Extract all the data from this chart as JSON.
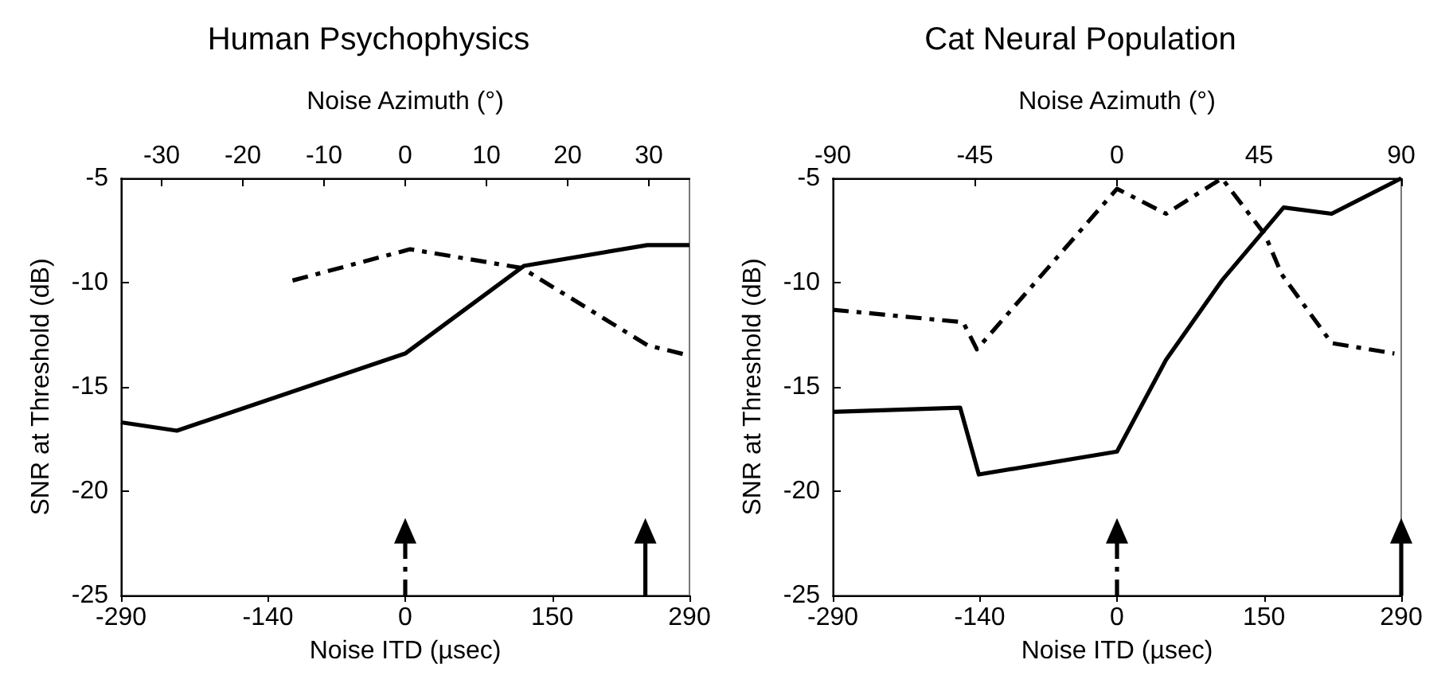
{
  "chart_data": [
    {
      "type": "line",
      "title": "Human Psychophysics",
      "xlabel": "Noise ITD (µsec)",
      "x2label": "Noise Azimuth (°)",
      "ylabel": "SNR at Threshold (dB)",
      "xlim": [
        -290,
        290
      ],
      "xticks": [
        -290,
        -140,
        0,
        150,
        290
      ],
      "x2lim": [
        -35,
        35
      ],
      "x2ticks": [
        -30,
        -20,
        -10,
        0,
        10,
        20,
        30
      ],
      "ylim": [
        -25,
        -5
      ],
      "yticks": [
        -25,
        -20,
        -15,
        -10,
        -5
      ],
      "grid": false,
      "series": [
        {
          "color": "#000000",
          "line_style": "solid",
          "x": [
            -290,
            -233,
            0,
            121,
            247,
            290
          ],
          "values": [
            -16.7,
            -17.1,
            -13.4,
            -9.2,
            -8.2,
            -8.2
          ]
        },
        {
          "color": "#000000",
          "line_style": "dashed",
          "x": [
            -115,
            5,
            119,
            247,
            290
          ],
          "values": [
            -9.9,
            -8.4,
            -9.3,
            -13.0,
            -13.5
          ]
        },
        {
          "color": "#000000",
          "line_style": "dashed",
          "marker": "triangle",
          "x": [
            0,
            0
          ],
          "values": [
            -25,
            -21.9
          ]
        },
        {
          "color": "#000000",
          "line_style": "solid",
          "marker": "triangle",
          "x": [
            245,
            245
          ],
          "values": [
            -25,
            -21.9
          ]
        }
      ]
    },
    {
      "type": "line",
      "title": "Cat Neural Population",
      "xlabel": "Noise ITD (µsec)",
      "x2label": "Noise Azimuth (°)",
      "ylabel": "SNR at Threshold (dB)",
      "xlim": [
        -290,
        290
      ],
      "xticks": [
        -290,
        -140,
        0,
        150,
        290
      ],
      "x2lim": [
        -90,
        90
      ],
      "x2ticks": [
        -90,
        -45,
        0,
        45,
        90
      ],
      "ylim": [
        -25,
        -5
      ],
      "yticks": [
        -25,
        -20,
        -15,
        -10,
        -5
      ],
      "grid": false,
      "series": [
        {
          "color": "#000000",
          "line_style": "solid",
          "x": [
            -290,
            -160,
            -141,
            0,
            50,
            107,
            170,
            219,
            290
          ],
          "values": [
            -16.2,
            -16.0,
            -19.2,
            -18.1,
            -13.7,
            -9.9,
            -6.4,
            -6.7,
            -5.0
          ]
        },
        {
          "color": "#000000",
          "line_style": "dashed",
          "x": [
            -290,
            -157,
            -143,
            0,
            50,
            107,
            151,
            168,
            219,
            283
          ],
          "values": [
            -11.3,
            -11.9,
            -13.2,
            -5.5,
            -6.7,
            -5.0,
            -7.7,
            -9.6,
            -12.9,
            -13.4
          ]
        },
        {
          "color": "#000000",
          "line_style": "dashed",
          "marker": "triangle",
          "x": [
            0,
            0
          ],
          "values": [
            -25,
            -21.9
          ]
        },
        {
          "color": "#000000",
          "line_style": "solid",
          "marker": "triangle",
          "x": [
            290,
            290
          ],
          "values": [
            -25,
            -21.9
          ]
        }
      ]
    }
  ]
}
